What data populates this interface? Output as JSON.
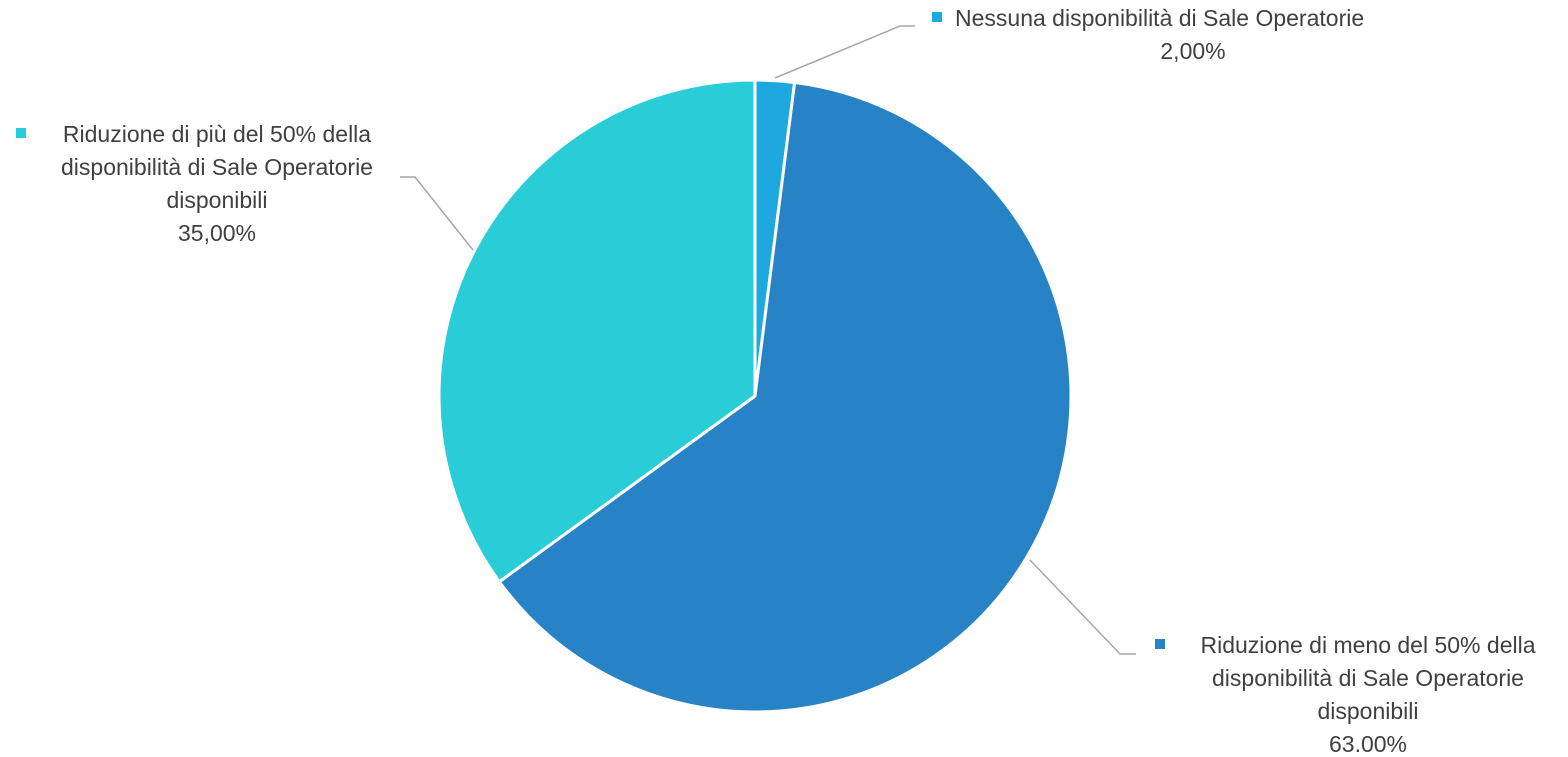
{
  "chart_data": {
    "type": "pie",
    "title": "",
    "slices": [
      {
        "name_lines": [
          "Nessuna disponibilità di Sale Operatorie"
        ],
        "value": 2.0,
        "value_label": "2,00%",
        "color": "#1ea8e0"
      },
      {
        "name_lines": [
          "Riduzione di meno del 50% della",
          "disponibilità di Sale Operatorie",
          "disponibili"
        ],
        "value": 63.0,
        "value_label": "63,00%",
        "color": "#2882c6"
      },
      {
        "name_lines": [
          "Riduzione di più del 50% della",
          "disponibilità di Sale Operatorie",
          "disponibili"
        ],
        "value": 35.0,
        "value_label": "35,00%",
        "color": "#29cdd8"
      }
    ],
    "start_angle": "12 o'clock",
    "direction": "clockwise",
    "legend": "none",
    "data_labels": "outside with leader lines"
  }
}
